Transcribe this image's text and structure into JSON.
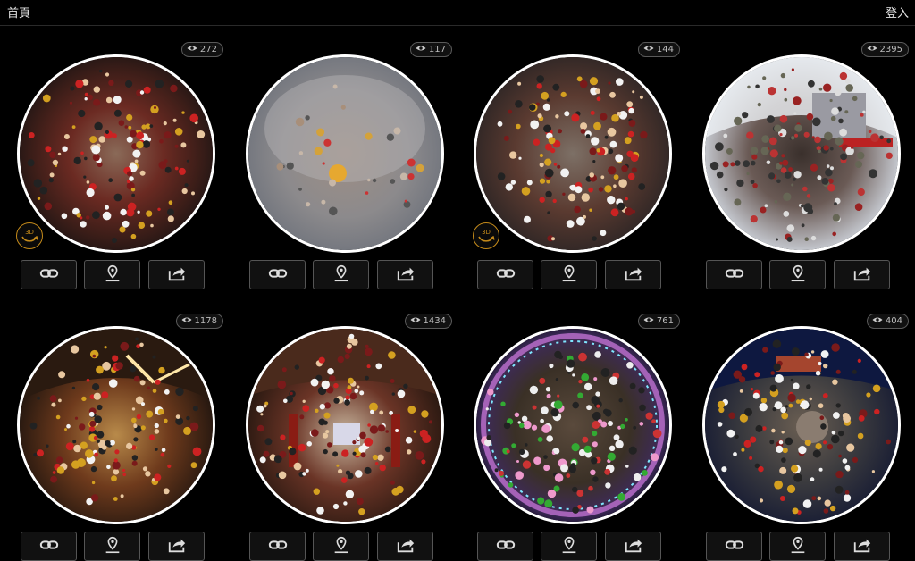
{
  "nav": {
    "home_label": "首頁",
    "login_label": "登入"
  },
  "badge_label": "3D",
  "colors": {
    "accent_3d": "#c48a1a",
    "border": "#555555",
    "background": "#000000"
  },
  "cards": [
    {
      "views": "272",
      "has_3d": true
    },
    {
      "views": "117",
      "has_3d": false
    },
    {
      "views": "144",
      "has_3d": true
    },
    {
      "views": "2395",
      "has_3d": false
    },
    {
      "views": "1178",
      "has_3d": false
    },
    {
      "views": "1434",
      "has_3d": false
    },
    {
      "views": "761",
      "has_3d": false
    },
    {
      "views": "404",
      "has_3d": false
    }
  ]
}
